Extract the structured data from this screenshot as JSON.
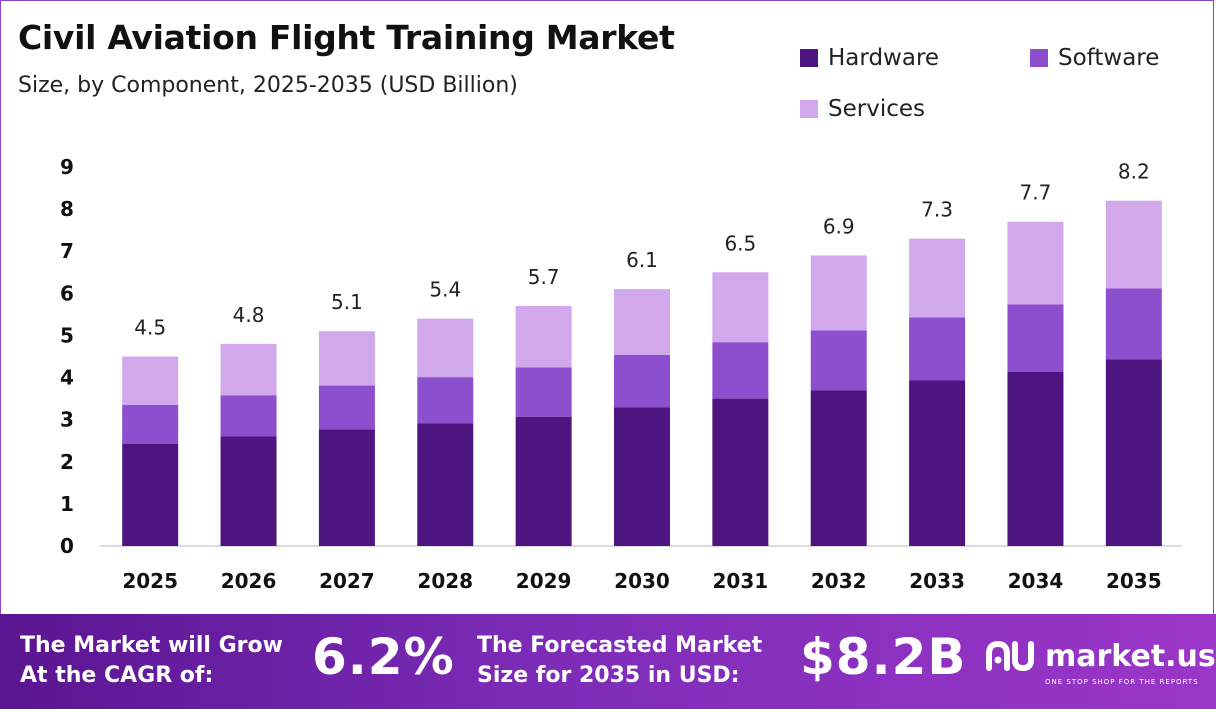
{
  "header": {
    "title": "Civil Aviation Flight Training Market",
    "subtitle": "Size, by Component, 2025-2035 (USD Billion)"
  },
  "colors": {
    "hardware": "#4e1580",
    "software": "#8e4fcf",
    "services": "#d2a8ec",
    "footer_accent": "#7d2cb8"
  },
  "chart_data": {
    "type": "bar",
    "stacked": true,
    "categories": [
      "2025",
      "2026",
      "2027",
      "2028",
      "2029",
      "2030",
      "2031",
      "2032",
      "2033",
      "2034",
      "2035"
    ],
    "series": [
      {
        "name": "Hardware",
        "values": [
          2.43,
          2.6,
          2.77,
          2.91,
          3.07,
          3.29,
          3.5,
          3.7,
          3.93,
          4.14,
          4.43
        ]
      },
      {
        "name": "Software",
        "values": [
          0.92,
          0.98,
          1.04,
          1.1,
          1.17,
          1.25,
          1.34,
          1.42,
          1.5,
          1.6,
          1.69
        ]
      },
      {
        "name": "Services",
        "values": [
          1.15,
          1.22,
          1.29,
          1.39,
          1.46,
          1.56,
          1.66,
          1.78,
          1.87,
          1.96,
          2.08
        ]
      }
    ],
    "totals": [
      "4.5",
      "4.8",
      "5.1",
      "5.4",
      "5.7",
      "6.1",
      "6.5",
      "6.9",
      "7.3",
      "7.7",
      "8.2"
    ],
    "ylim": [
      0,
      9
    ],
    "yticks": [
      "0",
      "1",
      "2",
      "3",
      "4",
      "5",
      "6",
      "7",
      "8",
      "9"
    ],
    "xlabel": "",
    "ylabel": "",
    "grid": false,
    "legend": "top-right"
  },
  "footer": {
    "cagr_label_line1": "The Market will Grow",
    "cagr_label_line2": "At the CAGR of:",
    "cagr_value": "6.2%",
    "forecast_label_line1": "The Forecasted Market",
    "forecast_label_line2": "Size for 2035 in USD:",
    "forecast_value": "$8.2B",
    "brand_name": "market.us",
    "brand_tagline": "ONE STOP SHOP FOR THE REPORTS",
    "brand_icon": "market-us-logo-icon"
  }
}
